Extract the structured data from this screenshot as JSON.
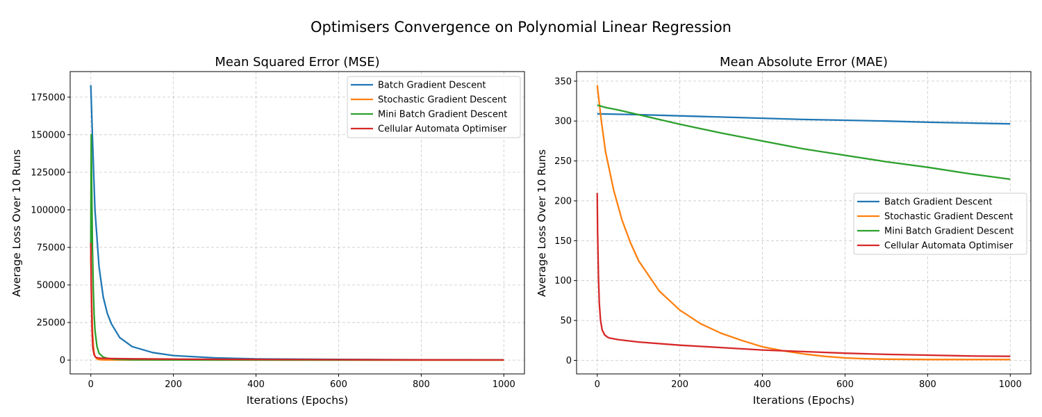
{
  "figure_title": "Optimisers Convergence on Polynomial Linear Regression",
  "colors": {
    "batch": "#1f77b4",
    "stochastic": "#ff7f0e",
    "minibatch": "#2ca02c",
    "cellular": "#d62728"
  },
  "chart_data": [
    {
      "type": "line",
      "title": "Mean Squared Error (MSE)",
      "xlabel": "Iterations (Epochs)",
      "ylabel": "Average Loss Over 10 Runs",
      "xlim": [
        -50,
        1050
      ],
      "ylim": [
        -9200,
        192000
      ],
      "xticks": [
        0,
        200,
        400,
        600,
        800,
        1000
      ],
      "yticks": [
        0,
        25000,
        50000,
        75000,
        100000,
        125000,
        150000,
        175000
      ],
      "ytick_labels": [
        "0",
        "25000",
        "50000",
        "75000",
        "100000",
        "125000",
        "150000",
        "175000"
      ],
      "grid": true,
      "legend_position": "upper right",
      "series": [
        {
          "name": "Batch Gradient Descent",
          "color_key": "batch",
          "x": [
            0,
            5,
            10,
            20,
            30,
            40,
            50,
            70,
            100,
            150,
            200,
            300,
            400,
            600,
            800,
            1000
          ],
          "y": [
            183000,
            140000,
            100000,
            62000,
            42000,
            31000,
            24000,
            15000,
            9000,
            5000,
            3000,
            1500,
            800,
            400,
            200,
            100
          ]
        },
        {
          "name": "Stochastic Gradient Descent",
          "color_key": "stochastic",
          "x": [
            0,
            2,
            4,
            6,
            8,
            10,
            15,
            20,
            30,
            50,
            100,
            1000
          ],
          "y": [
            70000,
            40000,
            20000,
            10000,
            5000,
            2500,
            800,
            300,
            100,
            50,
            30,
            10
          ]
        },
        {
          "name": "Mini Batch Gradient Descent",
          "color_key": "minibatch",
          "x": [
            0,
            1,
            2,
            4,
            6,
            8,
            10,
            15,
            20,
            30,
            40,
            60,
            100,
            200,
            1000
          ],
          "y": [
            75000,
            150000,
            120000,
            75000,
            48000,
            30000,
            20000,
            9000,
            4500,
            2000,
            1200,
            500,
            200,
            100,
            50
          ]
        },
        {
          "name": "Cellular Automata Optimiser",
          "color_key": "cellular",
          "x": [
            0,
            1,
            3,
            5,
            8,
            12,
            20,
            30,
            50,
            100,
            200,
            400,
            600,
            800,
            1000
          ],
          "y": [
            78000,
            50000,
            20000,
            8000,
            3500,
            1800,
            1300,
            1100,
            1000,
            850,
            650,
            420,
            280,
            150,
            80
          ]
        }
      ]
    },
    {
      "type": "line",
      "title": "Mean Absolute Error (MAE)",
      "xlabel": "Iterations (Epochs)",
      "ylabel": "Average Loss Over 10 Runs",
      "xlim": [
        -50,
        1050
      ],
      "ylim": [
        -17,
        362
      ],
      "xticks": [
        0,
        200,
        400,
        600,
        800,
        1000
      ],
      "yticks": [
        0,
        50,
        100,
        150,
        200,
        250,
        300,
        350
      ],
      "ytick_labels": [
        "0",
        "50",
        "100",
        "150",
        "200",
        "250",
        "300",
        "350"
      ],
      "grid": true,
      "legend_position": "center right",
      "series": [
        {
          "name": "Batch Gradient Descent",
          "color_key": "batch",
          "x": [
            0,
            100,
            200,
            300,
            400,
            500,
            600,
            700,
            800,
            900,
            1000
          ],
          "y": [
            309,
            308,
            306.5,
            305,
            303.5,
            302,
            301,
            300,
            298.5,
            297.5,
            296.5
          ]
        },
        {
          "name": "Stochastic Gradient Descent",
          "color_key": "stochastic",
          "x": [
            0,
            10,
            20,
            40,
            60,
            80,
            100,
            150,
            200,
            250,
            300,
            350,
            400,
            450,
            500,
            550,
            600,
            650,
            700,
            800,
            900,
            1000
          ],
          "y": [
            345,
            300,
            262,
            213,
            176,
            148,
            125,
            87,
            63,
            46,
            34,
            25,
            17,
            12,
            8,
            5,
            3,
            2,
            1.5,
            1,
            1,
            1
          ]
        },
        {
          "name": "Mini Batch Gradient Descent",
          "color_key": "minibatch",
          "x": [
            0,
            20,
            50,
            100,
            200,
            300,
            400,
            500,
            600,
            700,
            800,
            900,
            1000
          ],
          "y": [
            320,
            317,
            314,
            308,
            296,
            285,
            275,
            265,
            257,
            249,
            242,
            234,
            227
          ]
        },
        {
          "name": "Cellular Automata Optimiser",
          "color_key": "cellular",
          "x": [
            0,
            1,
            3,
            5,
            8,
            12,
            18,
            25,
            30,
            50,
            100,
            200,
            300,
            400,
            500,
            600,
            700,
            800,
            900,
            1000
          ],
          "y": [
            210,
            160,
            105,
            72,
            50,
            38,
            32,
            29,
            28,
            26,
            23,
            19,
            16,
            13,
            11,
            9,
            7.5,
            6.5,
            5.5,
            5
          ]
        }
      ]
    }
  ]
}
